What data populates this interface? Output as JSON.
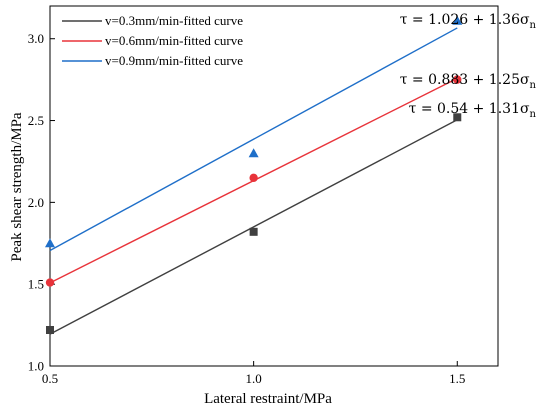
{
  "chart_data": {
    "type": "scatter",
    "xlabel": "Lateral restraint/MPa",
    "ylabel": "Peak shear strength/MPa",
    "xlim": [
      0.5,
      1.6
    ],
    "ylim": [
      1.0,
      3.2
    ],
    "x_ticks": [
      0.5,
      1.0,
      1.5
    ],
    "y_ticks": [
      1.0,
      1.5,
      2.0,
      2.5,
      3.0
    ],
    "x_tick_labels": [
      "0.5",
      "1.0",
      "1.5"
    ],
    "y_tick_labels": [
      "1.0",
      "1.5",
      "2.0",
      "2.5",
      "3.0"
    ],
    "legend_position": "top-left",
    "grid": false,
    "series": [
      {
        "name": "v=0.3mm/min-fitted curve",
        "color": "#404040",
        "marker": "square",
        "x": [
          0.5,
          1.0,
          1.5
        ],
        "y": [
          1.22,
          1.82,
          2.52
        ],
        "fit_intercept": 0.54,
        "fit_slope": 1.31,
        "equation": {
          "prefix": "τ = 0.54 + 1.31σ",
          "sub": "n"
        }
      },
      {
        "name": "v=0.6mm/min-fitted curve",
        "color": "#e8333a",
        "marker": "circle",
        "x": [
          0.5,
          1.0,
          1.5
        ],
        "y": [
          1.51,
          2.15,
          2.75
        ],
        "fit_intercept": 0.883,
        "fit_slope": 1.25,
        "equation": {
          "prefix": "τ = 0.883 + 1.25σ",
          "sub": "n"
        }
      },
      {
        "name": "v=0.9mm/min-fitted curve",
        "color": "#1f6fc9",
        "marker": "triangle",
        "x": [
          0.5,
          1.0,
          1.5
        ],
        "y": [
          1.75,
          2.3,
          3.11
        ],
        "fit_intercept": 1.026,
        "fit_slope": 1.36,
        "equation": {
          "prefix": "τ = 1.026 + 1.36σ",
          "sub": "n"
        }
      }
    ]
  }
}
